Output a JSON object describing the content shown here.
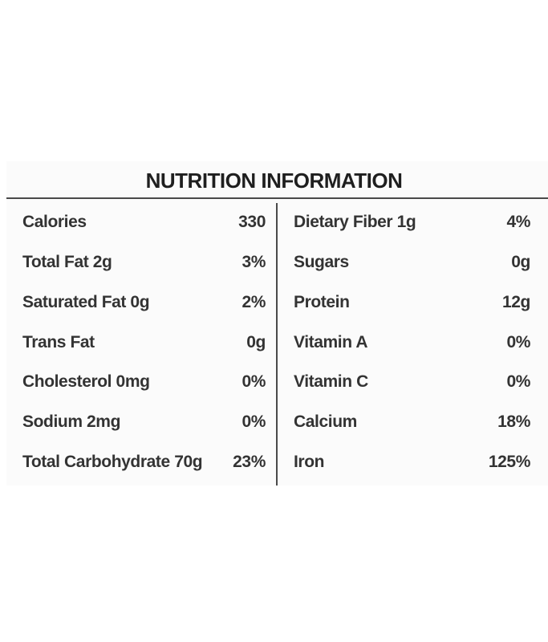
{
  "title": "NUTRITION INFORMATION",
  "left_column": [
    {
      "label": "Calories",
      "value": "330"
    },
    {
      "label": "Total Fat 2g",
      "value": "3%"
    },
    {
      "label": "Saturated Fat 0g",
      "value": "2%"
    },
    {
      "label": "Trans Fat",
      "value": "0g"
    },
    {
      "label": "Cholesterol 0mg",
      "value": "0%"
    },
    {
      "label": "Sodium 2mg",
      "value": "0%"
    },
    {
      "label": "Total Carbohydrate 70g",
      "value": "23%"
    }
  ],
  "right_column": [
    {
      "label": "Dietary Fiber 1g",
      "value": "4%"
    },
    {
      "label": "Sugars",
      "value": "0g"
    },
    {
      "label": "Protein",
      "value": "12g"
    },
    {
      "label": "Vitamin A",
      "value": "0%"
    },
    {
      "label": "Vitamin C",
      "value": "0%"
    },
    {
      "label": "Calcium",
      "value": "18%"
    },
    {
      "label": "Iron",
      "value": "125%"
    }
  ]
}
